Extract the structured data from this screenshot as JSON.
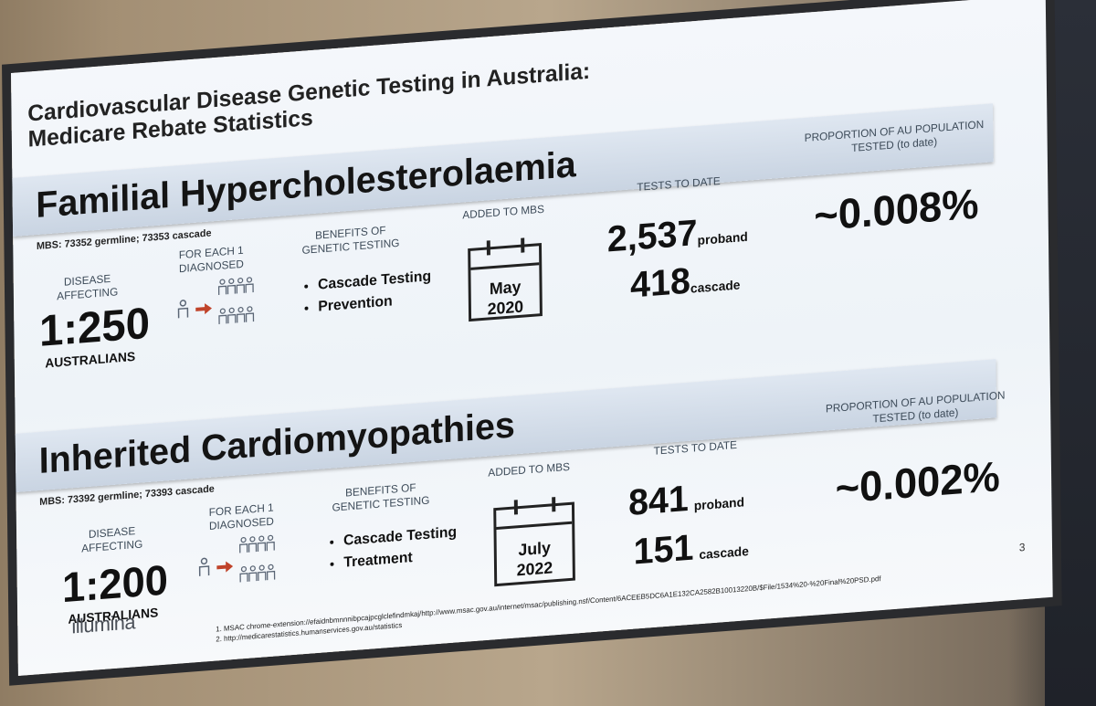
{
  "slide": {
    "title_line1": "Cardiovascular Disease Genetic Testing in Australia:",
    "title_line2": "Medicare Rebate Statistics",
    "page_number": "3",
    "logo_text": "illumina",
    "references": [
      "1.   MSAC chrome-extension://efaidnbmnnnibpcajpcglclefindmkaj/http://www.msac.gov.au/internet/msac/publishing.nsf/Content/6ACEEB5DC6A1E132CA2582B10013220B/$File/1534%20-%20Final%20PSD.pdf",
      "2.   http://medicarestatistics.humanservices.gov.au/statistics"
    ]
  },
  "sections": [
    {
      "title": "Familial Hypercholesterolaemia",
      "mbs": "MBS: 73352 germline; 73353 cascade",
      "headers": {
        "disease": "DISEASE AFFECTING",
        "diagnosed": "FOR EACH 1 DIAGNOSED",
        "benefits": "BENEFITS OF GENETIC TESTING",
        "added": "ADDED TO MBS",
        "tests": "TESTS TO DATE",
        "proportion": "PROPORTION OF AU POPULATION TESTED (to date)"
      },
      "ratio": "1:250",
      "ratio_unit": "AUSTRALIANS",
      "benefits": [
        "Cascade Testing",
        "Prevention"
      ],
      "added_month": "May",
      "added_year": "2020",
      "proband_count": "2,537",
      "proband_label": "proband",
      "cascade_count": "418",
      "cascade_label": "cascade",
      "proportion": "~0.008%"
    },
    {
      "title": "Inherited Cardiomyopathies",
      "mbs": "MBS: 73392 germline; 73393 cascade",
      "headers": {
        "disease": "DISEASE AFFECTING",
        "diagnosed": "FOR EACH 1 DIAGNOSED",
        "benefits": "BENEFITS OF GENETIC TESTING",
        "added": "ADDED TO MBS",
        "tests": "TESTS TO DATE",
        "proportion": "PROPORTION OF AU POPULATION TESTED (to date)"
      },
      "ratio": "1:200",
      "ratio_unit": "AUSTRALIANS",
      "benefits": [
        "Cascade Testing",
        "Treatment"
      ],
      "added_month": "July",
      "added_year": "2022",
      "proband_count": "841",
      "proband_label": "proband",
      "cascade_count": "151",
      "cascade_label": "cascade",
      "proportion": "~0.002%"
    }
  ],
  "colors": {
    "arrow": "#c0432a",
    "people": "#5a6575",
    "band": "#d3dce8"
  }
}
